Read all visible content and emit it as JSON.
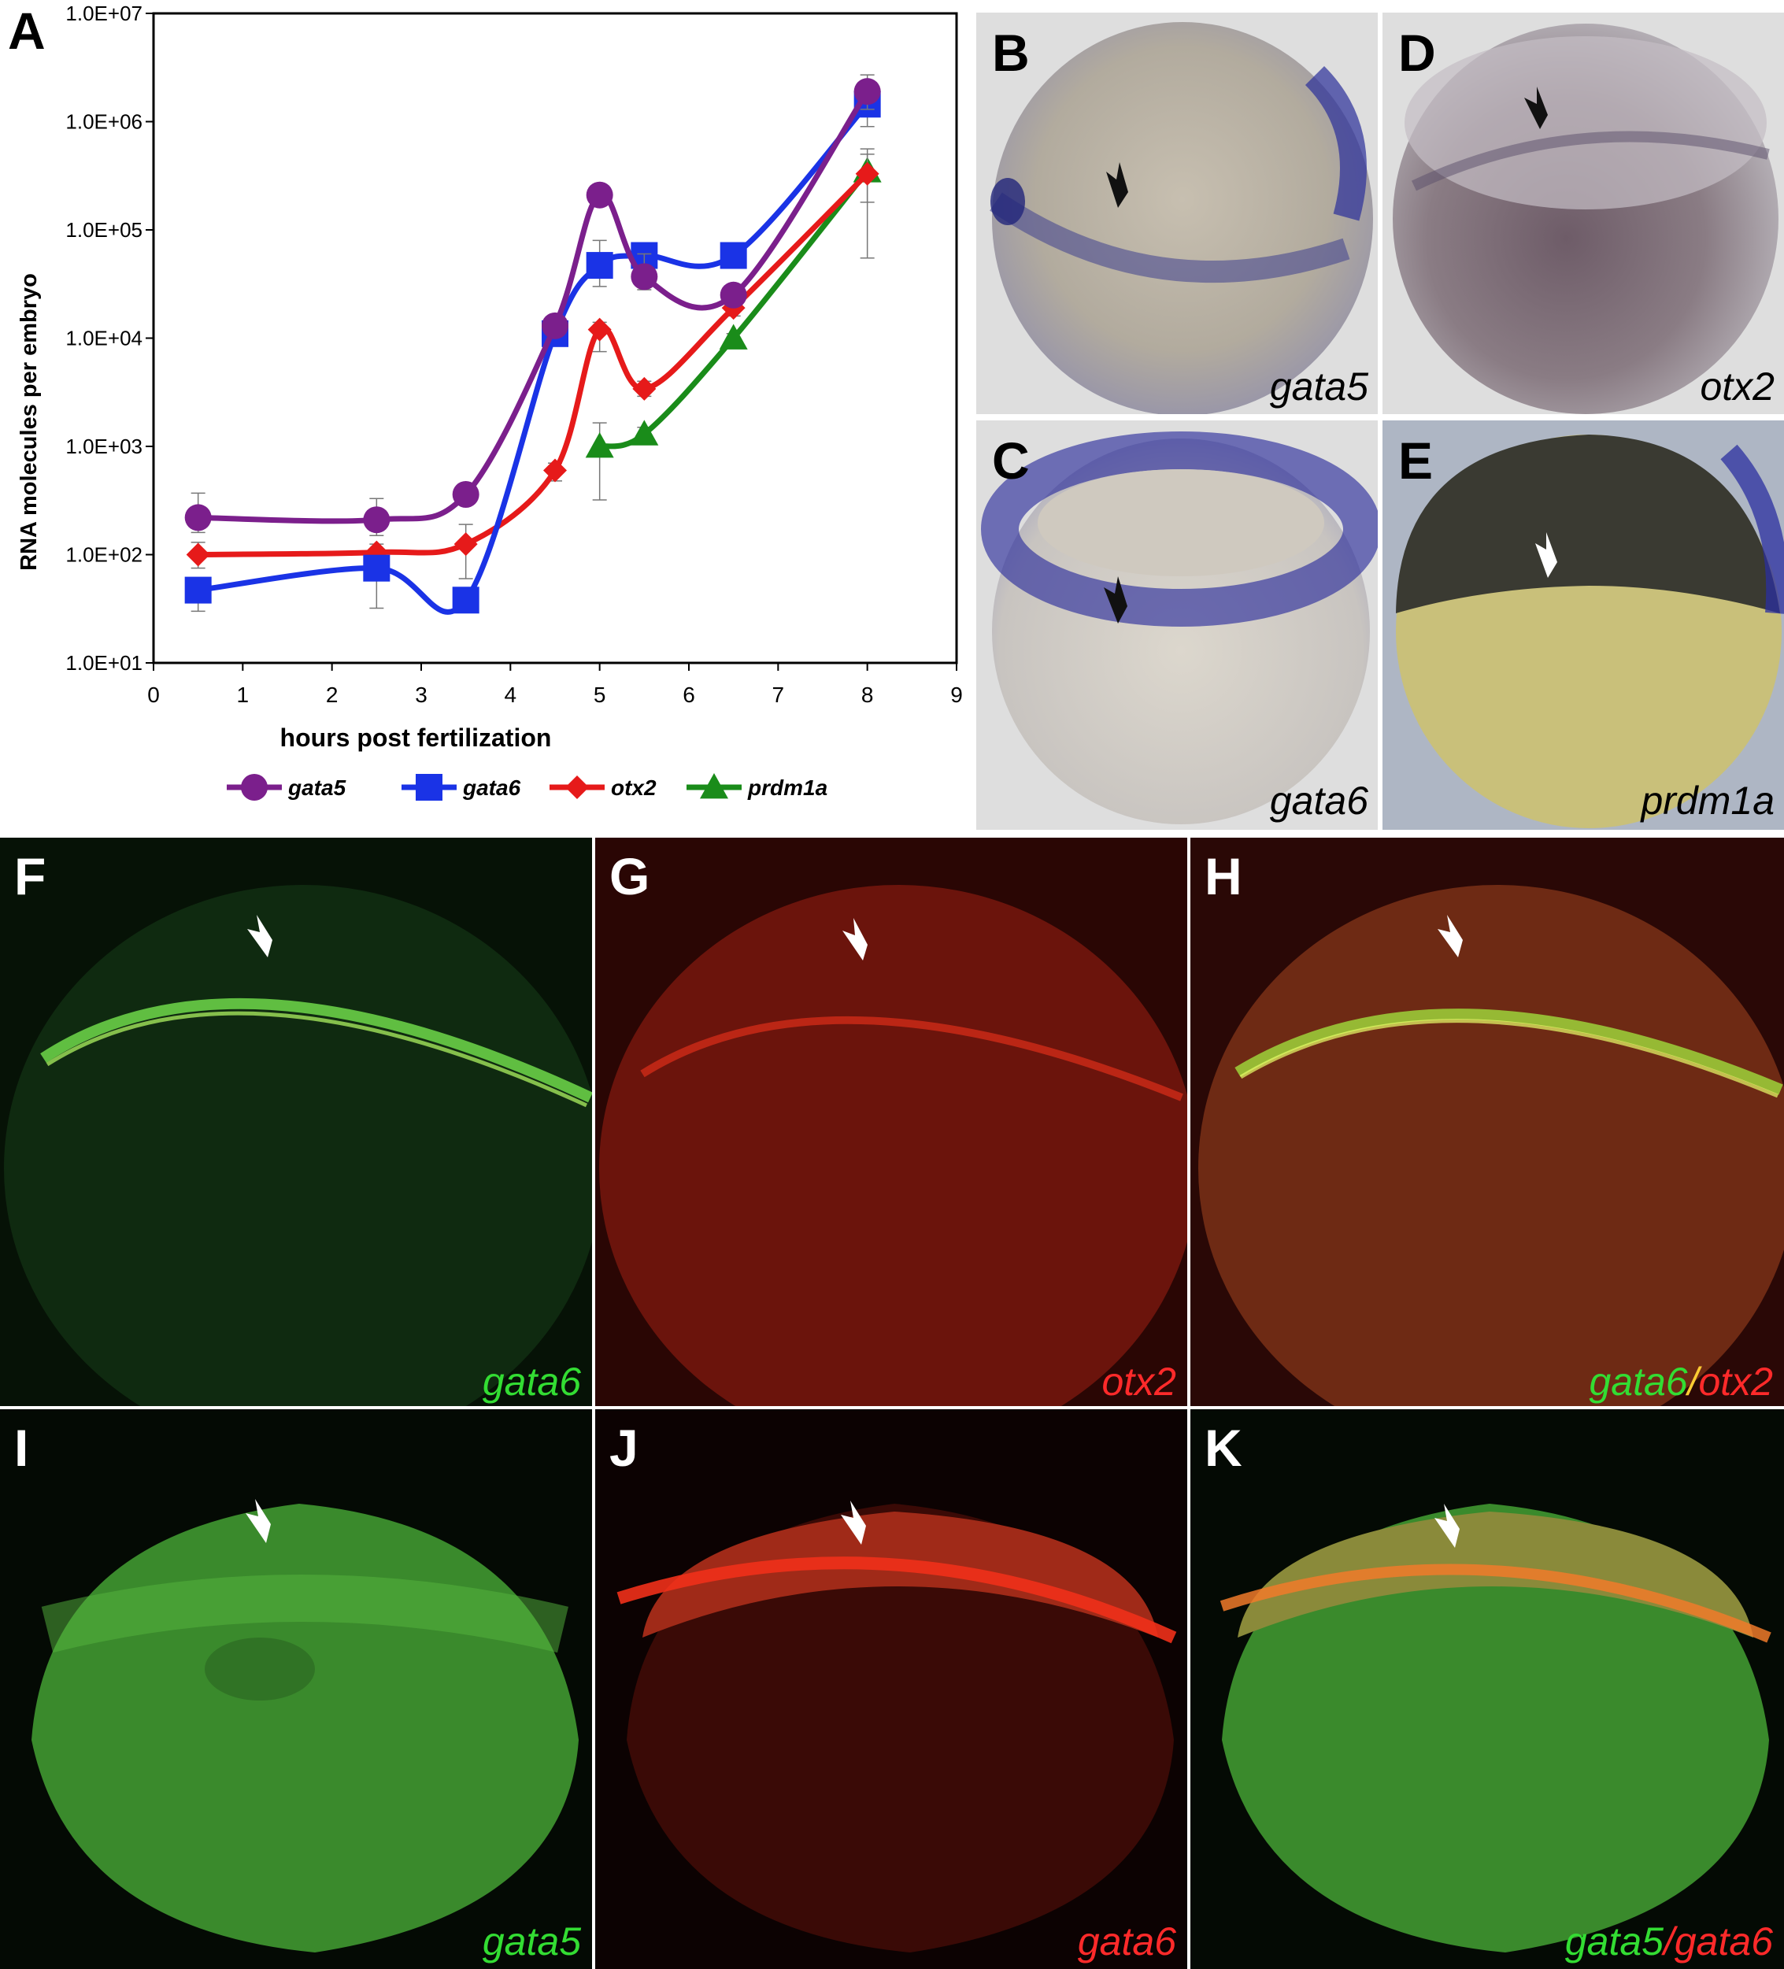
{
  "panel_letters": {
    "A": "A",
    "B": "B",
    "C": "C",
    "D": "D",
    "E": "E",
    "F": "F",
    "G": "G",
    "H": "H",
    "I": "I",
    "J": "J",
    "K": "K"
  },
  "labels": {
    "B": "gata5",
    "C": "gata6",
    "D": "otx2",
    "E": "prdm1a",
    "F": "gata6",
    "G": "otx2",
    "H_green": "gata6",
    "H_sep": "/",
    "H_red": "otx2",
    "I": "gata5",
    "J": "gata6",
    "K_green": "gata5",
    "K_sep": "/",
    "K_red": "gata6"
  },
  "colors": {
    "gata5": "#7b1f8c",
    "gata6": "#1a33e6",
    "otx2": "#e61a1a",
    "prdm1a": "#1a8c1a",
    "label_green": "#33dd33",
    "label_red": "#ff2a2a"
  },
  "chart_data": {
    "type": "line",
    "scale_y": "log",
    "xlabel": "hours post fertilization",
    "ylabel": "RNA molecules per embryo",
    "xlim": [
      0,
      9
    ],
    "ylim": [
      10,
      10000000
    ],
    "x_ticks": [
      "0",
      "1",
      "2",
      "3",
      "4",
      "5",
      "6",
      "7",
      "8",
      "9"
    ],
    "y_ticks": [
      "1.0E+01",
      "1.0E+02",
      "1.0E+03",
      "1.0E+04",
      "1.0E+05",
      "1.0E+06",
      "1.0E+07"
    ],
    "legend_position": "bottom",
    "series": [
      {
        "name": "gata5",
        "marker": "circle",
        "x": [
          0.5,
          2.5,
          3.5,
          4.5,
          5.0,
          5.5,
          6.5,
          8.0
        ],
        "y": [
          220,
          210,
          360,
          13000,
          210000,
          37000,
          25000,
          1900000
        ],
        "err_high": [
          370,
          330,
          420,
          15000,
          230000,
          60000,
          28000,
          2700000
        ],
        "err_low": [
          160,
          150,
          300,
          11000,
          190000,
          28000,
          22000,
          1300000
        ]
      },
      {
        "name": "gata6",
        "marker": "square",
        "x": [
          0.5,
          2.5,
          3.5,
          4.5,
          5.0,
          5.5,
          6.5,
          8.0
        ],
        "y": [
          47,
          75,
          38,
          11000,
          47000,
          58000,
          58000,
          1450000
        ],
        "err_high": [
          60,
          95,
          48,
          13000,
          80000,
          70000,
          65000,
          2300000
        ],
        "err_low": [
          30,
          32,
          30,
          9000,
          30000,
          45000,
          50000,
          900000
        ]
      },
      {
        "name": "otx2",
        "marker": "diamond",
        "x": [
          0.5,
          2.5,
          3.5,
          4.5,
          5.0,
          5.5,
          6.5,
          8.0
        ],
        "y": [
          100,
          105,
          125,
          600,
          12000,
          3400,
          19000,
          330000
        ],
        "err_high": [
          130,
          125,
          190,
          700,
          14000,
          4000,
          22000,
          500000
        ],
        "err_low": [
          75,
          85,
          60,
          480,
          7500,
          2900,
          16000,
          180000
        ]
      },
      {
        "name": "prdm1a",
        "marker": "triangle",
        "x": [
          5.0,
          5.5,
          6.5,
          8.0
        ],
        "y": [
          1000,
          1300,
          10000,
          350000
        ],
        "err_high": [
          1650,
          1500,
          11000,
          560000
        ],
        "err_low": [
          320,
          1150,
          9000,
          55000
        ]
      }
    ]
  }
}
